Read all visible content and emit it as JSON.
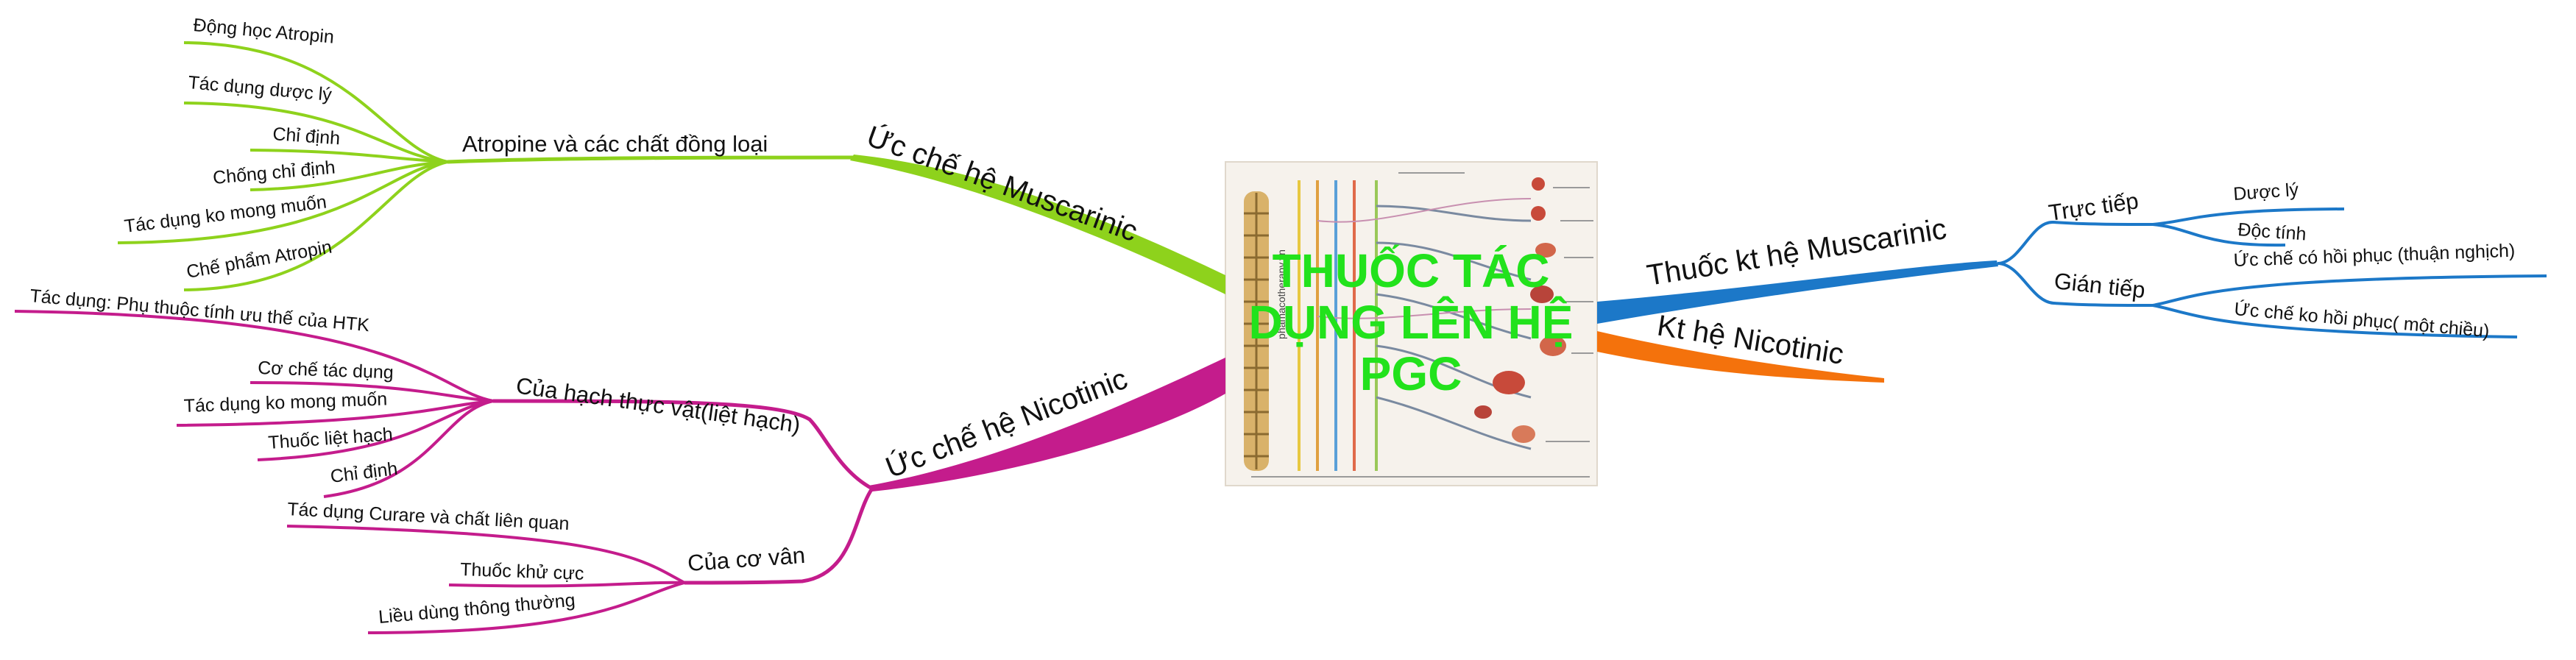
{
  "central": {
    "title_lines": [
      "THUỐC TÁC",
      "DỤNG LÊN HỆ",
      "PGC"
    ],
    "image_text": "phamacotherapy.vn"
  },
  "colors": {
    "muscarinic_block": "#8ed21c",
    "nicotinic_block": "#c41c8c",
    "muscarinic_agonist": "#1c78c8",
    "nicotinic_agonist": "#f4720c",
    "central_title": "#22e21c"
  },
  "branches": {
    "musc_block": {
      "label": "Ức chế hệ Muscarinic",
      "child": {
        "label": "Atropine và các chất đồng loại",
        "items": [
          "Động học Atropin",
          "Tác dụng dược lý",
          "Chỉ định",
          "Chống chỉ định",
          "Tác dụng ko mong muốn",
          "Chế phẩm Atropin"
        ]
      }
    },
    "nic_block": {
      "label": "Ức chế hệ Nicotinic",
      "children": [
        {
          "label": "Của hạch thực vật(liệt hạch)",
          "items": [
            "Tác dụng: Phụ thuộc tính ưu thế của HTK",
            "Cơ chế tác dụng",
            "Tác dụng ko mong muốn",
            "Thuốc liệt hạch",
            "Chỉ định"
          ]
        },
        {
          "label": "Của cơ vân",
          "items": [
            "Tác dụng Curare và chất liên quan",
            "Thuốc khử cực",
            "Liều dùng thông thường"
          ]
        }
      ]
    },
    "musc_agonist": {
      "label": "Thuốc kt hệ Muscarinic",
      "children": [
        {
          "label": "Trực tiếp",
          "items": [
            "Dược lý",
            "Độc tính"
          ]
        },
        {
          "label": "Gián tiếp",
          "items": [
            "Ức chế có hồi phục (thuận nghịch)",
            "Ức chế ko hồi phục( một chiều)"
          ]
        }
      ]
    },
    "nic_agonist": {
      "label": "Kt hệ Nicotinic"
    }
  }
}
